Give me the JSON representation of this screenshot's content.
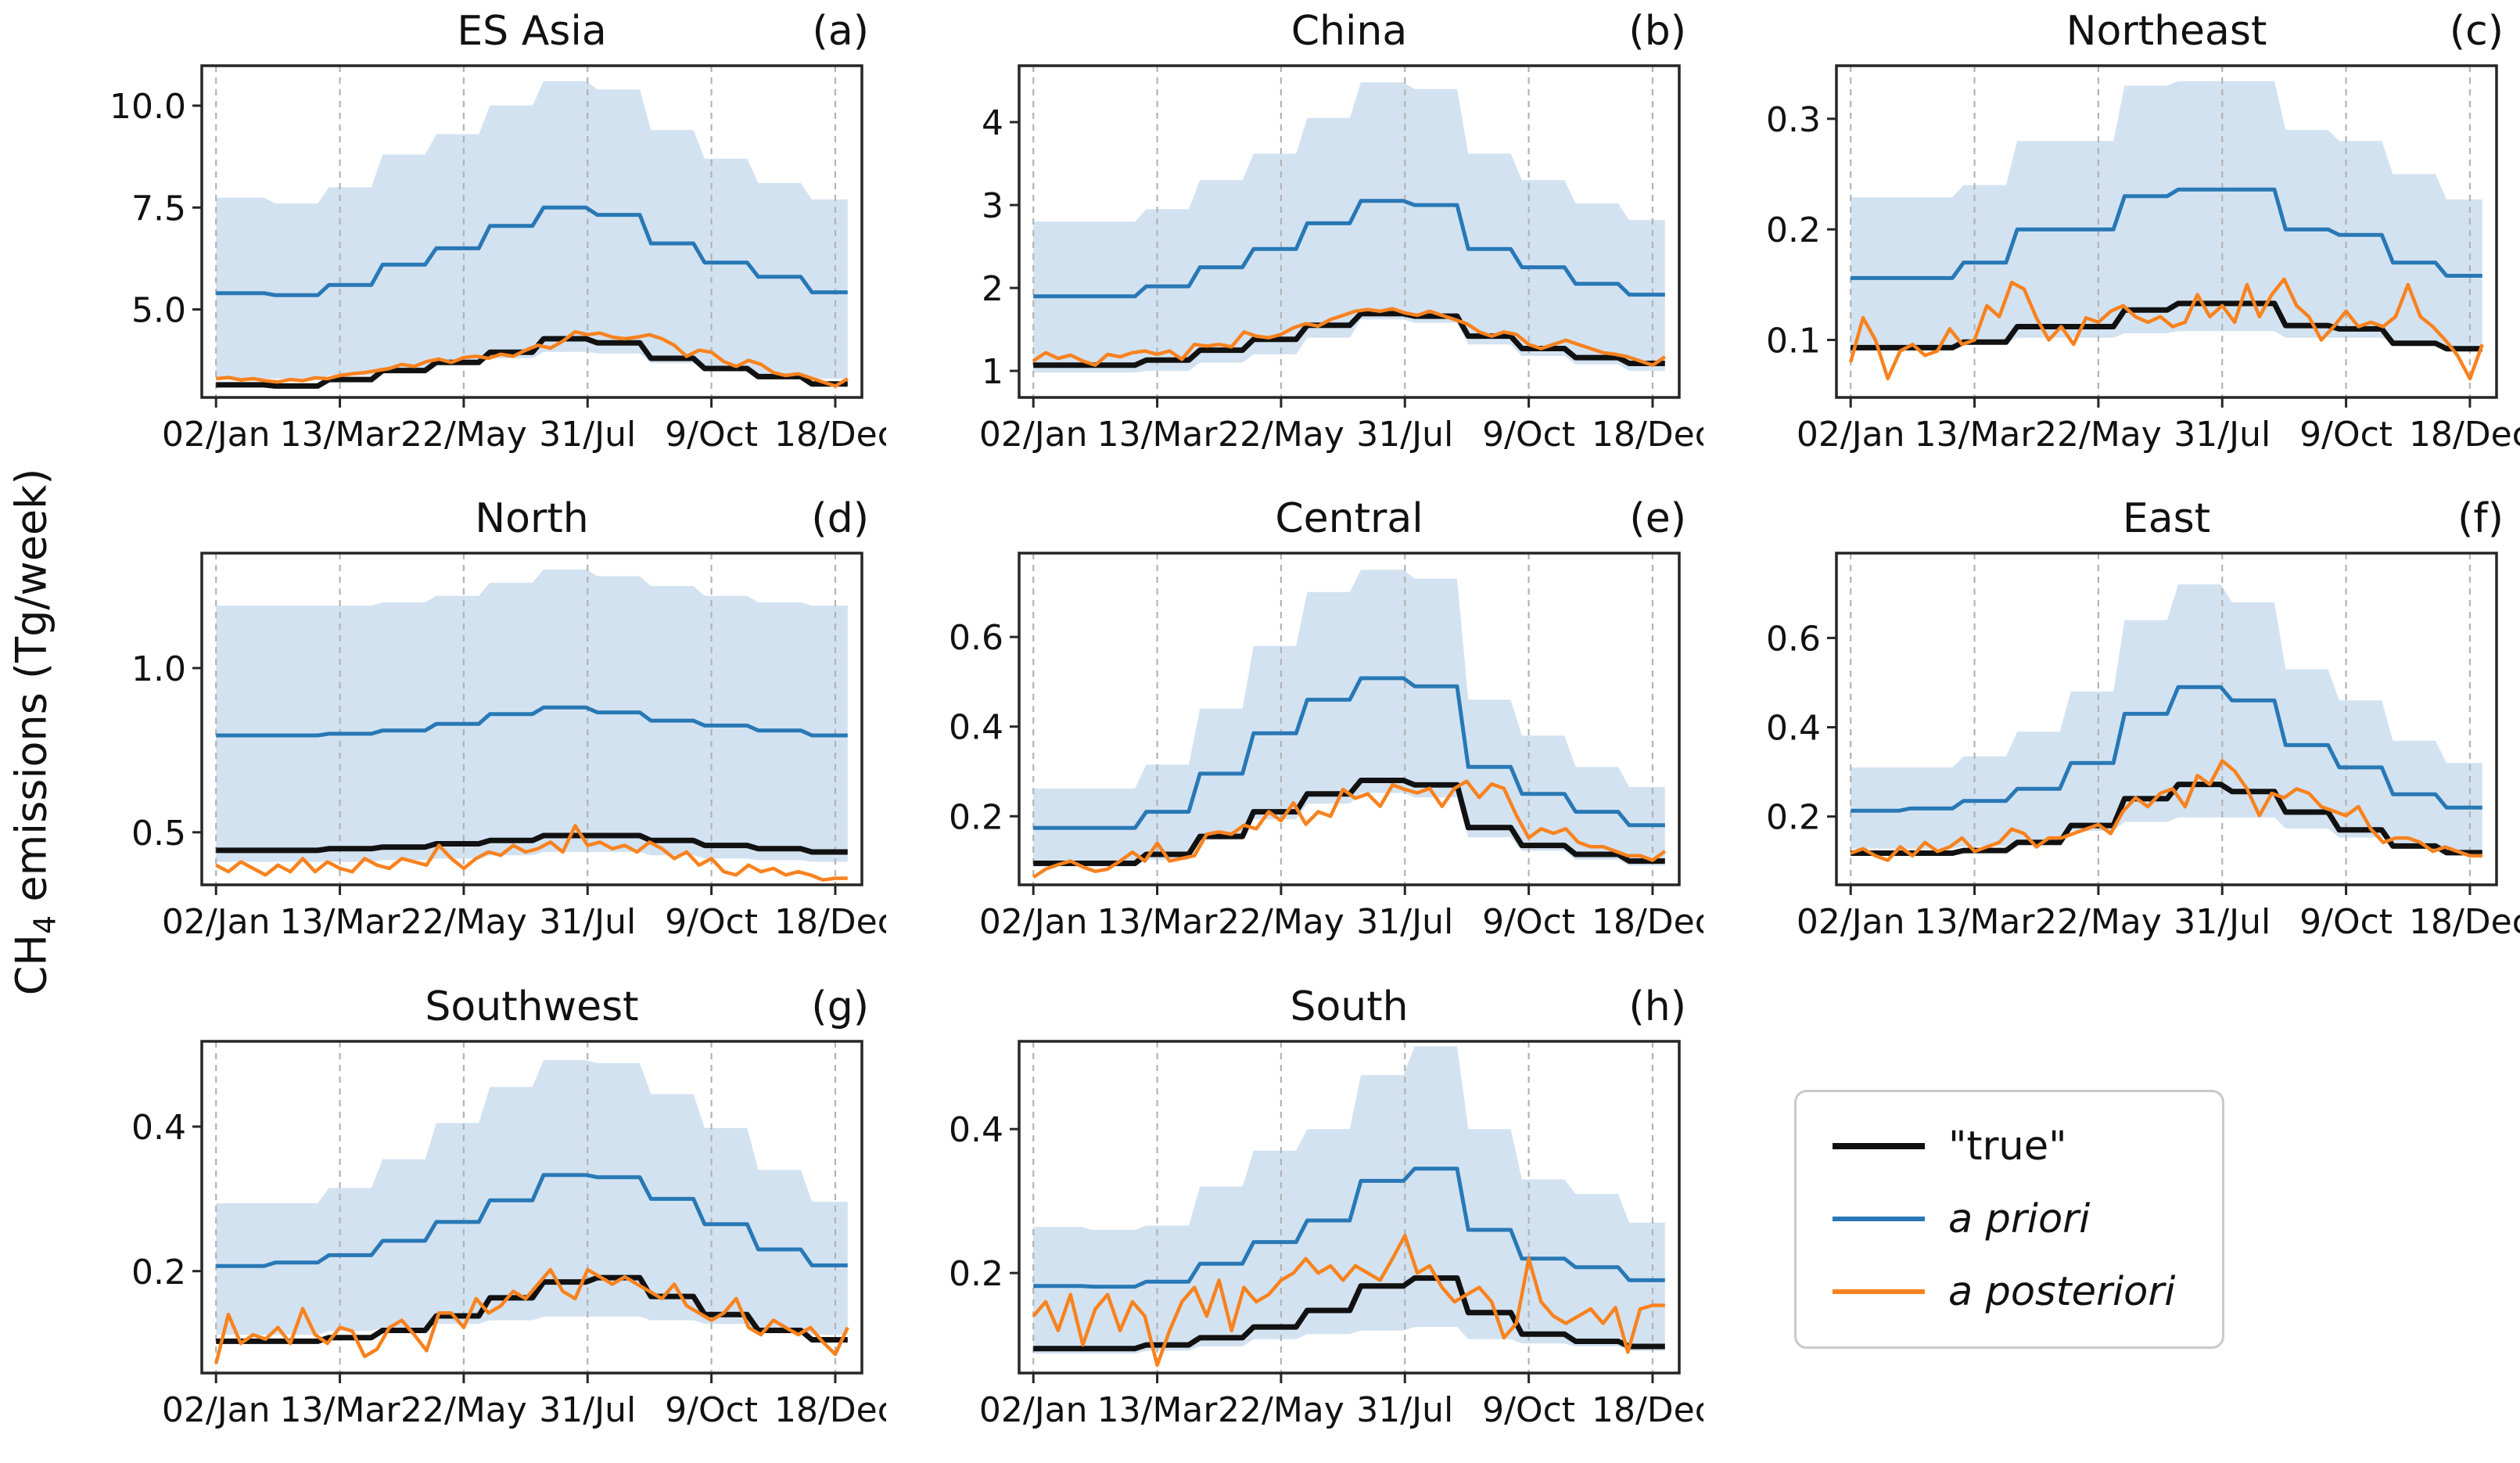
{
  "figure": {
    "ylabel": {
      "prefix": "CH",
      "sub": "4",
      "suffix": " emissions (Tg/week)"
    },
    "x_ticks": [
      {
        "week": 0,
        "label": "02/Jan"
      },
      {
        "week": 10,
        "label": "13/Mar"
      },
      {
        "week": 20,
        "label": "22/May"
      },
      {
        "week": 30,
        "label": "31/Jul"
      },
      {
        "week": 40,
        "label": "9/Oct"
      },
      {
        "week": 50,
        "label": "18/Dec"
      }
    ],
    "weeks_per_year": 52,
    "colors": {
      "true": "#111111",
      "prior": "#2878b5",
      "posterior": "#f8821e",
      "band": "#d3e2f1",
      "grid": "#b3b3b3",
      "frame": "#262626"
    },
    "legend": [
      {
        "label": "\"true\"",
        "color": "#111111",
        "italic": false
      },
      {
        "label": "a priori",
        "color": "#2878b5",
        "italic": true
      },
      {
        "label": "a posteriori",
        "color": "#f8821e",
        "italic": true
      }
    ]
  },
  "chart_data": [
    {
      "type": "line",
      "title": "ES Asia",
      "panel_label": "(a)",
      "ylim": [
        2.84,
        10.98
      ],
      "yticks": [
        {
          "v": 5.0,
          "label": "5.0"
        },
        {
          "v": 7.5,
          "label": "7.5"
        },
        {
          "v": 10.0,
          "label": "10.0"
        }
      ],
      "series": {
        "prior_monthly": [
          5.4,
          5.35,
          5.6,
          6.1,
          6.5,
          7.05,
          7.5,
          7.32,
          6.62,
          6.15,
          5.8,
          5.42
        ],
        "band_hi_monthly": [
          7.74,
          7.6,
          8.0,
          8.8,
          9.3,
          10.0,
          10.6,
          10.4,
          9.4,
          8.7,
          8.1,
          7.7
        ],
        "band_lo_monthly": [
          3.3,
          3.3,
          3.38,
          3.52,
          3.66,
          3.8,
          3.96,
          3.92,
          3.68,
          3.52,
          3.4,
          3.3
        ],
        "true_monthly": [
          3.15,
          3.12,
          3.28,
          3.5,
          3.7,
          3.95,
          4.28,
          4.18,
          3.8,
          3.55,
          3.35,
          3.17
        ],
        "posterior_weekly": [
          3.3,
          3.33,
          3.27,
          3.3,
          3.25,
          3.22,
          3.28,
          3.25,
          3.32,
          3.3,
          3.38,
          3.42,
          3.45,
          3.5,
          3.55,
          3.65,
          3.6,
          3.72,
          3.78,
          3.7,
          3.82,
          3.85,
          3.8,
          3.9,
          3.85,
          4.0,
          4.12,
          4.05,
          4.22,
          4.45,
          4.38,
          4.42,
          4.32,
          4.28,
          4.32,
          4.38,
          4.28,
          4.12,
          3.85,
          4.0,
          3.95,
          3.72,
          3.6,
          3.75,
          3.65,
          3.45,
          3.38,
          3.42,
          3.32,
          3.22,
          3.12,
          3.3
        ]
      }
    },
    {
      "type": "line",
      "title": "China",
      "panel_label": "(b)",
      "ylim": [
        0.68,
        4.68
      ],
      "yticks": [
        {
          "v": 1,
          "label": "1"
        },
        {
          "v": 2,
          "label": "2"
        },
        {
          "v": 3,
          "label": "3"
        },
        {
          "v": 4,
          "label": "4"
        }
      ],
      "series": {
        "prior_monthly": [
          1.9,
          1.9,
          2.02,
          2.25,
          2.47,
          2.78,
          3.05,
          3.0,
          2.47,
          2.25,
          2.05,
          1.92
        ],
        "band_hi_monthly": [
          2.8,
          2.8,
          2.95,
          3.3,
          3.62,
          4.05,
          4.48,
          4.4,
          3.62,
          3.3,
          3.02,
          2.82
        ],
        "band_lo_monthly": [
          0.98,
          0.98,
          1.0,
          1.1,
          1.2,
          1.4,
          1.62,
          1.58,
          1.32,
          1.18,
          1.08,
          1.0
        ],
        "true_monthly": [
          1.07,
          1.07,
          1.13,
          1.25,
          1.38,
          1.55,
          1.69,
          1.66,
          1.42,
          1.27,
          1.16,
          1.09
        ],
        "posterior_weekly": [
          1.12,
          1.22,
          1.15,
          1.19,
          1.12,
          1.07,
          1.2,
          1.17,
          1.22,
          1.24,
          1.2,
          1.24,
          1.14,
          1.32,
          1.3,
          1.32,
          1.29,
          1.47,
          1.42,
          1.4,
          1.44,
          1.52,
          1.57,
          1.54,
          1.62,
          1.67,
          1.72,
          1.74,
          1.72,
          1.75,
          1.7,
          1.67,
          1.72,
          1.67,
          1.62,
          1.57,
          1.47,
          1.42,
          1.47,
          1.44,
          1.32,
          1.27,
          1.32,
          1.37,
          1.32,
          1.27,
          1.22,
          1.2,
          1.17,
          1.12,
          1.07,
          1.17
        ]
      }
    },
    {
      "type": "line",
      "title": "Northeast",
      "panel_label": "(c)",
      "ylim": [
        0.048,
        0.348
      ],
      "yticks": [
        {
          "v": 0.1,
          "label": "0.1"
        },
        {
          "v": 0.2,
          "label": "0.2"
        },
        {
          "v": 0.3,
          "label": "0.3"
        }
      ],
      "series": {
        "prior_monthly": [
          0.156,
          0.156,
          0.17,
          0.2,
          0.2,
          0.23,
          0.236,
          0.236,
          0.2,
          0.195,
          0.17,
          0.158
        ],
        "band_hi_monthly": [
          0.229,
          0.229,
          0.24,
          0.28,
          0.28,
          0.33,
          0.334,
          0.334,
          0.29,
          0.28,
          0.25,
          0.227
        ],
        "band_lo_monthly": [
          0.095,
          0.095,
          0.097,
          0.102,
          0.102,
          0.106,
          0.108,
          0.108,
          0.102,
          0.102,
          0.097,
          0.09
        ],
        "true_monthly": [
          0.093,
          0.093,
          0.098,
          0.112,
          0.112,
          0.127,
          0.133,
          0.133,
          0.113,
          0.11,
          0.097,
          0.092
        ],
        "posterior_weekly": [
          0.08,
          0.12,
          0.1,
          0.065,
          0.09,
          0.096,
          0.086,
          0.09,
          0.11,
          0.096,
          0.1,
          0.131,
          0.121,
          0.152,
          0.146,
          0.12,
          0.1,
          0.112,
          0.096,
          0.12,
          0.116,
          0.126,
          0.131,
          0.121,
          0.116,
          0.121,
          0.112,
          0.116,
          0.141,
          0.121,
          0.131,
          0.116,
          0.15,
          0.121,
          0.141,
          0.155,
          0.131,
          0.121,
          0.1,
          0.112,
          0.126,
          0.112,
          0.116,
          0.112,
          0.121,
          0.15,
          0.121,
          0.112,
          0.1,
          0.086,
          0.065,
          0.096
        ]
      }
    },
    {
      "type": "line",
      "title": "North",
      "panel_label": "(d)",
      "ylim": [
        0.34,
        1.35
      ],
      "yticks": [
        {
          "v": 0.5,
          "label": "0.5"
        },
        {
          "v": 1.0,
          "label": "1.0"
        }
      ],
      "series": {
        "prior_monthly": [
          0.795,
          0.795,
          0.8,
          0.81,
          0.83,
          0.86,
          0.88,
          0.865,
          0.84,
          0.825,
          0.81,
          0.795
        ],
        "band_hi_monthly": [
          1.19,
          1.19,
          1.19,
          1.2,
          1.22,
          1.26,
          1.3,
          1.28,
          1.25,
          1.22,
          1.2,
          1.19
        ],
        "band_lo_monthly": [
          0.41,
          0.41,
          0.41,
          0.415,
          0.42,
          0.43,
          0.44,
          0.44,
          0.43,
          0.42,
          0.415,
          0.41
        ],
        "true_monthly": [
          0.445,
          0.445,
          0.45,
          0.455,
          0.465,
          0.475,
          0.49,
          0.49,
          0.475,
          0.46,
          0.45,
          0.44
        ],
        "posterior_weekly": [
          0.4,
          0.38,
          0.41,
          0.39,
          0.37,
          0.4,
          0.38,
          0.42,
          0.38,
          0.41,
          0.39,
          0.38,
          0.42,
          0.4,
          0.39,
          0.42,
          0.41,
          0.4,
          0.46,
          0.42,
          0.39,
          0.42,
          0.44,
          0.43,
          0.46,
          0.44,
          0.45,
          0.47,
          0.44,
          0.52,
          0.46,
          0.47,
          0.45,
          0.46,
          0.44,
          0.47,
          0.45,
          0.42,
          0.44,
          0.4,
          0.42,
          0.38,
          0.37,
          0.4,
          0.38,
          0.39,
          0.37,
          0.38,
          0.37,
          0.355,
          0.36,
          0.36
        ]
      }
    },
    {
      "type": "line",
      "title": "Central",
      "panel_label": "(e)",
      "ylim": [
        0.047,
        0.787
      ],
      "yticks": [
        {
          "v": 0.2,
          "label": "0.2"
        },
        {
          "v": 0.4,
          "label": "0.4"
        },
        {
          "v": 0.6,
          "label": "0.6"
        }
      ],
      "series": {
        "prior_monthly": [
          0.174,
          0.174,
          0.21,
          0.295,
          0.385,
          0.46,
          0.508,
          0.49,
          0.31,
          0.25,
          0.21,
          0.18
        ],
        "band_hi_monthly": [
          0.262,
          0.262,
          0.315,
          0.44,
          0.58,
          0.7,
          0.75,
          0.73,
          0.46,
          0.38,
          0.31,
          0.265
        ],
        "band_lo_monthly": [
          0.088,
          0.088,
          0.103,
          0.148,
          0.193,
          0.228,
          0.252,
          0.242,
          0.153,
          0.123,
          0.103,
          0.09
        ],
        "true_monthly": [
          0.095,
          0.095,
          0.115,
          0.155,
          0.21,
          0.25,
          0.28,
          0.27,
          0.175,
          0.135,
          0.115,
          0.1
        ],
        "posterior_weekly": [
          0.064,
          0.082,
          0.092,
          0.1,
          0.087,
          0.077,
          0.082,
          0.1,
          0.12,
          0.1,
          0.14,
          0.1,
          0.106,
          0.112,
          0.16,
          0.165,
          0.16,
          0.18,
          0.172,
          0.21,
          0.19,
          0.23,
          0.182,
          0.21,
          0.2,
          0.26,
          0.24,
          0.25,
          0.222,
          0.27,
          0.26,
          0.252,
          0.262,
          0.222,
          0.262,
          0.278,
          0.242,
          0.272,
          0.262,
          0.202,
          0.152,
          0.172,
          0.162,
          0.172,
          0.142,
          0.132,
          0.132,
          0.122,
          0.112,
          0.112,
          0.102,
          0.122
        ]
      }
    },
    {
      "type": "line",
      "title": "East",
      "panel_label": "(f)",
      "ylim": [
        0.047,
        0.79
      ],
      "yticks": [
        {
          "v": 0.2,
          "label": "0.2"
        },
        {
          "v": 0.4,
          "label": "0.4"
        },
        {
          "v": 0.6,
          "label": "0.6"
        }
      ],
      "series": {
        "prior_monthly": [
          0.213,
          0.218,
          0.235,
          0.262,
          0.32,
          0.43,
          0.49,
          0.46,
          0.36,
          0.31,
          0.25,
          0.22
        ],
        "band_hi_monthly": [
          0.31,
          0.31,
          0.335,
          0.39,
          0.48,
          0.64,
          0.72,
          0.68,
          0.53,
          0.46,
          0.37,
          0.32
        ],
        "band_lo_monthly": [
          0.128,
          0.128,
          0.133,
          0.148,
          0.168,
          0.188,
          0.198,
          0.198,
          0.173,
          0.153,
          0.133,
          0.124
        ],
        "true_monthly": [
          0.118,
          0.118,
          0.124,
          0.142,
          0.18,
          0.24,
          0.272,
          0.256,
          0.21,
          0.17,
          0.134,
          0.119
        ],
        "posterior_weekly": [
          0.118,
          0.128,
          0.112,
          0.102,
          0.132,
          0.112,
          0.142,
          0.122,
          0.132,
          0.152,
          0.122,
          0.132,
          0.142,
          0.172,
          0.162,
          0.132,
          0.152,
          0.152,
          0.162,
          0.172,
          0.182,
          0.162,
          0.212,
          0.242,
          0.222,
          0.252,
          0.262,
          0.222,
          0.292,
          0.272,
          0.325,
          0.302,
          0.262,
          0.202,
          0.252,
          0.242,
          0.262,
          0.252,
          0.222,
          0.212,
          0.202,
          0.222,
          0.172,
          0.142,
          0.152,
          0.152,
          0.142,
          0.122,
          0.132,
          0.122,
          0.112,
          0.112
        ]
      }
    },
    {
      "type": "line",
      "title": "Southwest",
      "panel_label": "(g)",
      "ylim": [
        0.059,
        0.518
      ],
      "yticks": [
        {
          "v": 0.2,
          "label": "0.2"
        },
        {
          "v": 0.4,
          "label": "0.4"
        }
      ],
      "series": {
        "prior_monthly": [
          0.207,
          0.212,
          0.222,
          0.242,
          0.268,
          0.298,
          0.333,
          0.33,
          0.3,
          0.265,
          0.23,
          0.208
        ],
        "band_hi_monthly": [
          0.294,
          0.294,
          0.315,
          0.355,
          0.405,
          0.455,
          0.492,
          0.488,
          0.445,
          0.398,
          0.34,
          0.296
        ],
        "band_lo_monthly": [
          0.112,
          0.112,
          0.117,
          0.122,
          0.127,
          0.132,
          0.137,
          0.137,
          0.132,
          0.127,
          0.117,
          0.112
        ],
        "true_monthly": [
          0.103,
          0.103,
          0.108,
          0.118,
          0.138,
          0.163,
          0.185,
          0.191,
          0.165,
          0.14,
          0.118,
          0.105
        ],
        "posterior_weekly": [
          0.072,
          0.14,
          0.1,
          0.112,
          0.106,
          0.122,
          0.1,
          0.148,
          0.112,
          0.1,
          0.122,
          0.117,
          0.082,
          0.092,
          0.122,
          0.132,
          0.112,
          0.09,
          0.142,
          0.142,
          0.122,
          0.162,
          0.142,
          0.152,
          0.172,
          0.162,
          0.182,
          0.202,
          0.172,
          0.162,
          0.202,
          0.192,
          0.182,
          0.192,
          0.182,
          0.172,
          0.162,
          0.182,
          0.152,
          0.142,
          0.132,
          0.142,
          0.162,
          0.122,
          0.112,
          0.132,
          0.122,
          0.112,
          0.122,
          0.102,
          0.085,
          0.122
        ]
      }
    },
    {
      "type": "line",
      "title": "South",
      "panel_label": "(h)",
      "ylim": [
        0.061,
        0.522
      ],
      "yticks": [
        {
          "v": 0.2,
          "label": "0.2"
        },
        {
          "v": 0.4,
          "label": "0.4"
        }
      ],
      "series": {
        "prior_monthly": [
          0.182,
          0.181,
          0.188,
          0.213,
          0.243,
          0.273,
          0.328,
          0.345,
          0.26,
          0.22,
          0.208,
          0.19
        ],
        "band_hi_monthly": [
          0.264,
          0.26,
          0.266,
          0.32,
          0.37,
          0.4,
          0.475,
          0.515,
          0.4,
          0.33,
          0.31,
          0.27
        ],
        "band_lo_monthly": [
          0.088,
          0.088,
          0.092,
          0.098,
          0.108,
          0.115,
          0.12,
          0.125,
          0.108,
          0.102,
          0.098,
          0.092
        ],
        "true_monthly": [
          0.095,
          0.095,
          0.1,
          0.11,
          0.125,
          0.148,
          0.182,
          0.193,
          0.145,
          0.115,
          0.105,
          0.098
        ],
        "posterior_weekly": [
          0.14,
          0.16,
          0.12,
          0.17,
          0.1,
          0.15,
          0.17,
          0.12,
          0.16,
          0.14,
          0.072,
          0.12,
          0.16,
          0.18,
          0.14,
          0.19,
          0.12,
          0.18,
          0.16,
          0.17,
          0.19,
          0.2,
          0.22,
          0.2,
          0.21,
          0.19,
          0.21,
          0.2,
          0.19,
          0.22,
          0.252,
          0.2,
          0.21,
          0.18,
          0.16,
          0.17,
          0.18,
          0.16,
          0.11,
          0.13,
          0.22,
          0.16,
          0.14,
          0.13,
          0.14,
          0.15,
          0.13,
          0.152,
          0.09,
          0.15,
          0.155,
          0.155
        ]
      }
    }
  ]
}
